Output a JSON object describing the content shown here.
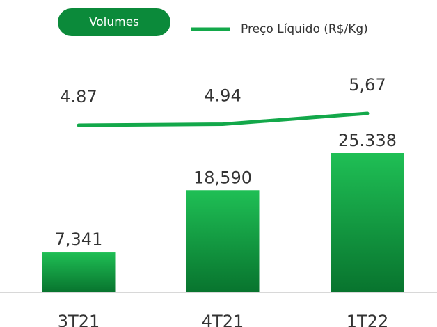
{
  "chart_data": {
    "type": "bar-line",
    "categories": [
      "3T21",
      "4T21",
      "1T22"
    ],
    "series": [
      {
        "name": "Volumes",
        "color": "#0e8f3c",
        "type": "bar",
        "values": [
          7341,
          18590,
          25338
        ],
        "value_labels": [
          "7,341",
          "18,590",
          "25.338"
        ]
      },
      {
        "name": "Preço Líquido (R$/Kg)",
        "color": "#13a84a",
        "type": "line",
        "axis": "y2",
        "values": [
          4.87,
          4.94,
          5.67
        ],
        "value_labels": [
          "4.87",
          "4.94",
          "5,67"
        ]
      }
    ]
  }
}
